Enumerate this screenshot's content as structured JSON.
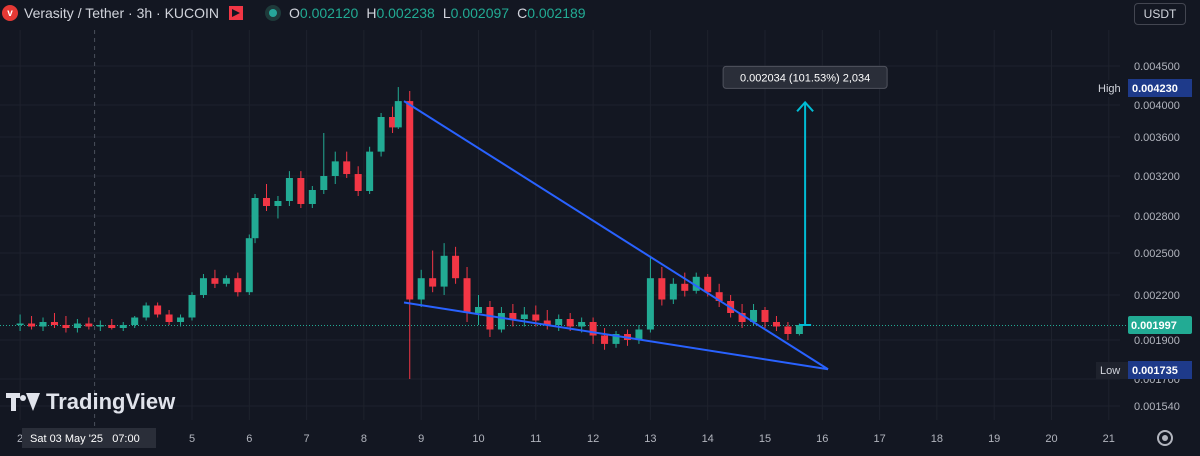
{
  "header": {
    "symbol": "Verasity / Tether · 3h · KUCOIN",
    "open_label": "O",
    "open": "0.002120",
    "high_label": "H",
    "high": "0.002238",
    "low_label": "L",
    "low": "0.002097",
    "close_label": "C",
    "close": "0.002189"
  },
  "currency": "USDT",
  "brand": "TradingView",
  "colors": {
    "up": "#22ab94",
    "down": "#f23645",
    "trendline": "#2962ff",
    "measure": "#00bcd4",
    "background": "#131722"
  },
  "chart_data": {
    "type": "candlestick",
    "yaxis_ticks": [
      "0.004500",
      "0.004000",
      "0.003600",
      "0.003200",
      "0.002800",
      "0.002500",
      "0.002200",
      "0.001900",
      "0.001700",
      "0.001540"
    ],
    "y_ticks": [
      0.0045,
      0.004,
      0.0036,
      0.0032,
      0.0028,
      0.0025,
      0.0022,
      0.0019,
      0.0017,
      0.00154
    ],
    "xaxis_ticks": [
      "2",
      "5",
      "6",
      "7",
      "8",
      "9",
      "10",
      "11",
      "12",
      "13",
      "14",
      "15",
      "16",
      "17",
      "18",
      "19",
      "20",
      "21"
    ],
    "x_ticks": [
      2,
      5,
      6,
      7,
      8,
      9,
      10,
      11,
      12,
      13,
      14,
      15,
      16,
      17,
      18,
      19,
      20,
      21
    ],
    "crosshair_date": "Sat 03 May '25   07:00",
    "crosshair_x": 3.3,
    "current_price": "0.001997",
    "current_value": 0.001997,
    "high_label": "High",
    "high_value": "0.004230",
    "high": 0.00423,
    "low_label": "Low",
    "low_value": "0.001735",
    "low": 0.001735,
    "measure_label": "0.002034 (101.53%) 2,034",
    "measure": {
      "x": 15.7,
      "from": 0.002,
      "to": 0.004034
    },
    "trendlines": [
      {
        "x1": 8.7,
        "y1": 0.00405,
        "x2": 16.1,
        "y2": 0.00175
      },
      {
        "x1": 8.7,
        "y1": 0.00215,
        "x2": 16.1,
        "y2": 0.00175
      }
    ],
    "candles": [
      {
        "x": 2.0,
        "o": 0.002,
        "h": 0.00207,
        "l": 0.00196,
        "c": 0.00201
      },
      {
        "x": 2.2,
        "o": 0.00201,
        "h": 0.00206,
        "l": 0.00197,
        "c": 0.00199
      },
      {
        "x": 2.4,
        "o": 0.00199,
        "h": 0.00205,
        "l": 0.00196,
        "c": 0.00202
      },
      {
        "x": 2.6,
        "o": 0.00202,
        "h": 0.00208,
        "l": 0.00198,
        "c": 0.002
      },
      {
        "x": 2.8,
        "o": 0.002,
        "h": 0.00206,
        "l": 0.00195,
        "c": 0.00198
      },
      {
        "x": 3.0,
        "o": 0.00198,
        "h": 0.00204,
        "l": 0.00195,
        "c": 0.00201
      },
      {
        "x": 3.2,
        "o": 0.00201,
        "h": 0.00205,
        "l": 0.00197,
        "c": 0.00199
      },
      {
        "x": 3.4,
        "o": 0.00199,
        "h": 0.00203,
        "l": 0.00196,
        "c": 0.002
      },
      {
        "x": 3.6,
        "o": 0.002,
        "h": 0.00204,
        "l": 0.00197,
        "c": 0.00198
      },
      {
        "x": 3.8,
        "o": 0.00198,
        "h": 0.00202,
        "l": 0.00196,
        "c": 0.002
      },
      {
        "x": 4.0,
        "o": 0.002,
        "h": 0.00206,
        "l": 0.00198,
        "c": 0.00205
      },
      {
        "x": 4.2,
        "o": 0.00205,
        "h": 0.00215,
        "l": 0.00203,
        "c": 0.00213
      },
      {
        "x": 4.4,
        "o": 0.00213,
        "h": 0.00215,
        "l": 0.00205,
        "c": 0.00207
      },
      {
        "x": 4.6,
        "o": 0.00207,
        "h": 0.0021,
        "l": 0.002,
        "c": 0.00202
      },
      {
        "x": 4.8,
        "o": 0.00202,
        "h": 0.00207,
        "l": 0.00199,
        "c": 0.00205
      },
      {
        "x": 5.0,
        "o": 0.00205,
        "h": 0.00222,
        "l": 0.00203,
        "c": 0.0022
      },
      {
        "x": 5.2,
        "o": 0.0022,
        "h": 0.00235,
        "l": 0.00218,
        "c": 0.00232
      },
      {
        "x": 5.4,
        "o": 0.00232,
        "h": 0.00238,
        "l": 0.00225,
        "c": 0.00228
      },
      {
        "x": 5.6,
        "o": 0.00228,
        "h": 0.00234,
        "l": 0.00226,
        "c": 0.00232
      },
      {
        "x": 5.8,
        "o": 0.00232,
        "h": 0.00236,
        "l": 0.00219,
        "c": 0.00222
      },
      {
        "x": 6.0,
        "o": 0.00222,
        "h": 0.00265,
        "l": 0.0022,
        "c": 0.00262
      },
      {
        "x": 6.1,
        "o": 0.00262,
        "h": 0.00302,
        "l": 0.00258,
        "c": 0.00298
      },
      {
        "x": 6.3,
        "o": 0.00298,
        "h": 0.00312,
        "l": 0.00285,
        "c": 0.0029
      },
      {
        "x": 6.5,
        "o": 0.0029,
        "h": 0.003,
        "l": 0.00278,
        "c": 0.00295
      },
      {
        "x": 6.7,
        "o": 0.00295,
        "h": 0.00325,
        "l": 0.0029,
        "c": 0.00318
      },
      {
        "x": 6.9,
        "o": 0.00318,
        "h": 0.00325,
        "l": 0.00288,
        "c": 0.00292
      },
      {
        "x": 7.1,
        "o": 0.00292,
        "h": 0.0031,
        "l": 0.00288,
        "c": 0.00306
      },
      {
        "x": 7.3,
        "o": 0.00306,
        "h": 0.00365,
        "l": 0.00302,
        "c": 0.0032
      },
      {
        "x": 7.5,
        "o": 0.0032,
        "h": 0.00345,
        "l": 0.00312,
        "c": 0.00335
      },
      {
        "x": 7.7,
        "o": 0.00335,
        "h": 0.00345,
        "l": 0.00318,
        "c": 0.00322
      },
      {
        "x": 7.9,
        "o": 0.00322,
        "h": 0.0033,
        "l": 0.003,
        "c": 0.00305
      },
      {
        "x": 8.1,
        "o": 0.00305,
        "h": 0.0035,
        "l": 0.00302,
        "c": 0.00345
      },
      {
        "x": 8.3,
        "o": 0.00345,
        "h": 0.0039,
        "l": 0.0034,
        "c": 0.00385
      },
      {
        "x": 8.5,
        "o": 0.00385,
        "h": 0.00398,
        "l": 0.00365,
        "c": 0.00372
      },
      {
        "x": 8.6,
        "o": 0.00372,
        "h": 0.00423,
        "l": 0.0037,
        "c": 0.00405
      },
      {
        "x": 8.8,
        "o": 0.00405,
        "h": 0.00418,
        "l": 0.0017,
        "c": 0.00217
      },
      {
        "x": 9.0,
        "o": 0.00217,
        "h": 0.00238,
        "l": 0.00212,
        "c": 0.00232
      },
      {
        "x": 9.2,
        "o": 0.00232,
        "h": 0.00252,
        "l": 0.00222,
        "c": 0.00226
      },
      {
        "x": 9.4,
        "o": 0.00226,
        "h": 0.00258,
        "l": 0.0022,
        "c": 0.00248
      },
      {
        "x": 9.6,
        "o": 0.00248,
        "h": 0.00255,
        "l": 0.00228,
        "c": 0.00232
      },
      {
        "x": 9.8,
        "o": 0.00232,
        "h": 0.0024,
        "l": 0.00202,
        "c": 0.00208
      },
      {
        "x": 10.0,
        "o": 0.00208,
        "h": 0.0022,
        "l": 0.002,
        "c": 0.00212
      },
      {
        "x": 10.2,
        "o": 0.00212,
        "h": 0.00216,
        "l": 0.00192,
        "c": 0.00197
      },
      {
        "x": 10.4,
        "o": 0.00197,
        "h": 0.00212,
        "l": 0.00195,
        "c": 0.00208
      },
      {
        "x": 10.6,
        "o": 0.00208,
        "h": 0.00214,
        "l": 0.00199,
        "c": 0.00204
      },
      {
        "x": 10.8,
        "o": 0.00204,
        "h": 0.00212,
        "l": 0.00199,
        "c": 0.00207
      },
      {
        "x": 11.0,
        "o": 0.00207,
        "h": 0.00213,
        "l": 0.00199,
        "c": 0.00203
      },
      {
        "x": 11.2,
        "o": 0.00203,
        "h": 0.0021,
        "l": 0.00197,
        "c": 0.002
      },
      {
        "x": 11.4,
        "o": 0.002,
        "h": 0.00207,
        "l": 0.00196,
        "c": 0.00204
      },
      {
        "x": 11.6,
        "o": 0.00204,
        "h": 0.00208,
        "l": 0.00196,
        "c": 0.00199
      },
      {
        "x": 11.8,
        "o": 0.00199,
        "h": 0.00205,
        "l": 0.00195,
        "c": 0.00202
      },
      {
        "x": 12.0,
        "o": 0.00202,
        "h": 0.00205,
        "l": 0.00188,
        "c": 0.00193
      },
      {
        "x": 12.2,
        "o": 0.00193,
        "h": 0.00198,
        "l": 0.00185,
        "c": 0.00188
      },
      {
        "x": 12.4,
        "o": 0.00188,
        "h": 0.00196,
        "l": 0.00186,
        "c": 0.00194
      },
      {
        "x": 12.6,
        "o": 0.00194,
        "h": 0.00197,
        "l": 0.00187,
        "c": 0.0019
      },
      {
        "x": 12.8,
        "o": 0.0019,
        "h": 0.002,
        "l": 0.00188,
        "c": 0.00197
      },
      {
        "x": 13.0,
        "o": 0.00197,
        "h": 0.00248,
        "l": 0.00195,
        "c": 0.00232
      },
      {
        "x": 13.2,
        "o": 0.00232,
        "h": 0.0024,
        "l": 0.00213,
        "c": 0.00217
      },
      {
        "x": 13.4,
        "o": 0.00217,
        "h": 0.00232,
        "l": 0.00214,
        "c": 0.00228
      },
      {
        "x": 13.6,
        "o": 0.00228,
        "h": 0.00236,
        "l": 0.00219,
        "c": 0.00223
      },
      {
        "x": 13.8,
        "o": 0.00223,
        "h": 0.00236,
        "l": 0.00221,
        "c": 0.00233
      },
      {
        "x": 14.0,
        "o": 0.00233,
        "h": 0.00235,
        "l": 0.00219,
        "c": 0.00222
      },
      {
        "x": 14.2,
        "o": 0.00222,
        "h": 0.00228,
        "l": 0.00212,
        "c": 0.00216
      },
      {
        "x": 14.4,
        "o": 0.00216,
        "h": 0.0022,
        "l": 0.00205,
        "c": 0.00208
      },
      {
        "x": 14.6,
        "o": 0.00208,
        "h": 0.00214,
        "l": 0.00198,
        "c": 0.00202
      },
      {
        "x": 14.8,
        "o": 0.00202,
        "h": 0.00214,
        "l": 0.002,
        "c": 0.0021
      },
      {
        "x": 15.0,
        "o": 0.0021,
        "h": 0.00212,
        "l": 0.00198,
        "c": 0.00202
      },
      {
        "x": 15.2,
        "o": 0.00202,
        "h": 0.00206,
        "l": 0.00196,
        "c": 0.00199
      },
      {
        "x": 15.4,
        "o": 0.00199,
        "h": 0.00202,
        "l": 0.0019,
        "c": 0.00194
      },
      {
        "x": 15.6,
        "o": 0.00194,
        "h": 0.00201,
        "l": 0.00193,
        "c": 0.002
      }
    ]
  }
}
